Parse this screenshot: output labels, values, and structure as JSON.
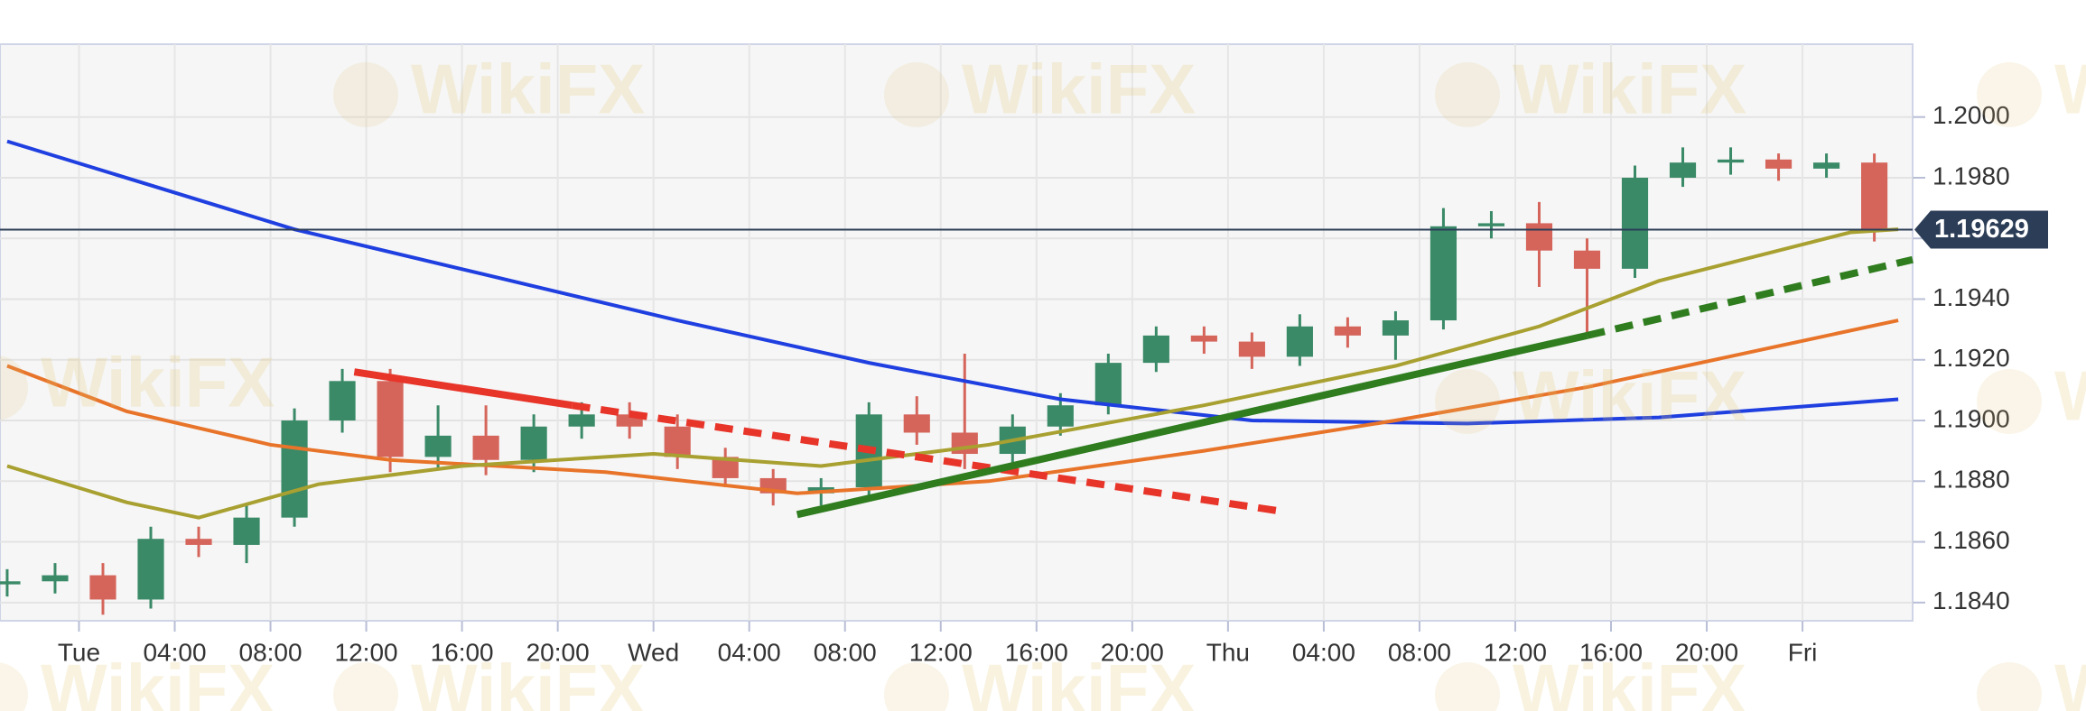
{
  "chart_data": {
    "type": "candlestick",
    "watermark": "WikiFX",
    "up_color": "#3a8a68",
    "down_color": "#d5655b",
    "xlim": [
      -3.3,
      76.6
    ],
    "xticks": [
      {
        "value": 0,
        "label": "Tue"
      },
      {
        "value": 4,
        "label": "04:00"
      },
      {
        "value": 8,
        "label": "08:00"
      },
      {
        "value": 12,
        "label": "12:00"
      },
      {
        "value": 16,
        "label": "16:00"
      },
      {
        "value": 20,
        "label": "20:00"
      },
      {
        "value": 24,
        "label": "Wed"
      },
      {
        "value": 28,
        "label": "04:00"
      },
      {
        "value": 32,
        "label": "08:00"
      },
      {
        "value": 36,
        "label": "12:00"
      },
      {
        "value": 40,
        "label": "16:00"
      },
      {
        "value": 44,
        "label": "20:00"
      },
      {
        "value": 48,
        "label": "Thu"
      },
      {
        "value": 52,
        "label": "04:00"
      },
      {
        "value": 56,
        "label": "08:00"
      },
      {
        "value": 60,
        "label": "12:00"
      },
      {
        "value": 64,
        "label": "16:00"
      },
      {
        "value": 68,
        "label": "20:00"
      },
      {
        "value": 72,
        "label": "Fri"
      }
    ],
    "ylim": [
      1.1834,
      1.2024
    ],
    "yticks": [
      {
        "value": 1.184,
        "label": "1.1840"
      },
      {
        "value": 1.186,
        "label": "1.1860"
      },
      {
        "value": 1.188,
        "label": "1.1880"
      },
      {
        "value": 1.19,
        "label": "1.1900"
      },
      {
        "value": 1.192,
        "label": "1.1920"
      },
      {
        "value": 1.194,
        "label": "1.1940"
      },
      {
        "value": 1.196,
        "label": "1.1960"
      },
      {
        "value": 1.198,
        "label": "1.1980"
      },
      {
        "value": 1.2,
        "label": "1.2000"
      }
    ],
    "grid": true,
    "current_price": 1.19629,
    "current_price_color": "#2c3e57",
    "candles": {
      "x": [
        -3,
        -1,
        1,
        3,
        5,
        7,
        9,
        11,
        13,
        15,
        17,
        19,
        21,
        23,
        25,
        27,
        29,
        31,
        33,
        35,
        37,
        39,
        41,
        43,
        45,
        47,
        49,
        51,
        53,
        55,
        57,
        59,
        61,
        63,
        65,
        67,
        69,
        71,
        73,
        75
      ],
      "open": [
        1.1846,
        1.1847,
        1.1849,
        1.1841,
        1.1861,
        1.1859,
        1.1868,
        1.19,
        1.1913,
        1.1888,
        1.1895,
        1.1887,
        1.1898,
        1.1902,
        1.1898,
        1.1888,
        1.1881,
        1.1876,
        1.1878,
        1.1902,
        1.1896,
        1.1889,
        1.1898,
        1.1905,
        1.1919,
        1.1928,
        1.1926,
        1.1921,
        1.1931,
        1.1928,
        1.1933,
        1.1964,
        1.1965,
        1.1956,
        1.195,
        1.198,
        1.1985,
        1.1986,
        1.1983,
        1.1985
      ],
      "high": [
        1.1851,
        1.1853,
        1.1853,
        1.1865,
        1.1865,
        1.1872,
        1.1904,
        1.1917,
        1.1917,
        1.1905,
        1.1905,
        1.1902,
        1.1906,
        1.1906,
        1.1902,
        1.1891,
        1.1884,
        1.1881,
        1.1906,
        1.1908,
        1.1922,
        1.1902,
        1.1909,
        1.1922,
        1.1931,
        1.1931,
        1.1929,
        1.1935,
        1.1934,
        1.1936,
        1.197,
        1.1969,
        1.1972,
        1.196,
        1.1984,
        1.199,
        1.199,
        1.1988,
        1.1988,
        1.1988
      ],
      "low": [
        1.1842,
        1.1843,
        1.1836,
        1.1838,
        1.1855,
        1.1853,
        1.1865,
        1.1896,
        1.1883,
        1.1884,
        1.1882,
        1.1883,
        1.1894,
        1.1894,
        1.1884,
        1.1878,
        1.1872,
        1.1872,
        1.1874,
        1.1892,
        1.1884,
        1.1886,
        1.1895,
        1.1902,
        1.1916,
        1.1922,
        1.1917,
        1.1918,
        1.1924,
        1.192,
        1.193,
        1.196,
        1.1944,
        1.1928,
        1.1947,
        1.1977,
        1.1981,
        1.1979,
        1.198,
        1.1959
      ],
      "close": [
        1.1847,
        1.1849,
        1.1841,
        1.1861,
        1.1859,
        1.1868,
        1.19,
        1.1913,
        1.1888,
        1.1895,
        1.1887,
        1.1898,
        1.1902,
        1.1898,
        1.1888,
        1.1881,
        1.1876,
        1.1878,
        1.1902,
        1.1896,
        1.1889,
        1.1898,
        1.1905,
        1.1919,
        1.1928,
        1.1926,
        1.1921,
        1.1931,
        1.1928,
        1.1933,
        1.1964,
        1.1965,
        1.1956,
        1.195,
        1.198,
        1.1985,
        1.1986,
        1.1983,
        1.1985,
        1.1963
      ]
    },
    "lines": [
      {
        "color": "#1f3fe0",
        "x": [
          -3,
          9,
          17,
          25,
          33,
          41,
          49,
          58,
          66,
          76
        ],
        "values": [
          1.1992,
          1.1963,
          1.1948,
          1.1933,
          1.1919,
          1.1907,
          1.19,
          1.1899,
          1.1901,
          1.1907
        ]
      },
      {
        "color": "#e8742a",
        "x": [
          -3,
          2,
          8,
          13,
          22,
          30,
          38,
          47,
          55,
          63,
          76
        ],
        "values": [
          1.1918,
          1.1903,
          1.1892,
          1.1887,
          1.1883,
          1.1876,
          1.188,
          1.189,
          1.19,
          1.1911,
          1.1933
        ]
      },
      {
        "color": "#a8a030",
        "x": [
          -3,
          2,
          5,
          10,
          16,
          24,
          31,
          38,
          47,
          55,
          61,
          66,
          74,
          76
        ],
        "values": [
          1.1885,
          1.1873,
          1.1868,
          1.1879,
          1.1885,
          1.1889,
          1.1885,
          1.1892,
          1.1905,
          1.1918,
          1.1931,
          1.1946,
          1.1962,
          1.1963
        ]
      }
    ],
    "trendlines": [
      {
        "color": "#e8352a",
        "dashed": false,
        "x": [
          11.5,
          20.6
        ],
        "values": [
          1.1916,
          1.1905
        ]
      },
      {
        "color": "#e8352a",
        "dashed": true,
        "x": [
          20.6,
          50.3
        ],
        "values": [
          1.1905,
          1.187
        ]
      },
      {
        "color": "#2f7d1f",
        "dashed": false,
        "x": [
          30,
          63
        ],
        "values": [
          1.1869,
          1.1928
        ]
      },
      {
        "color": "#2f7d1f",
        "dashed": true,
        "x": [
          63,
          76.6
        ],
        "values": [
          1.1928,
          1.1953
        ]
      }
    ]
  }
}
